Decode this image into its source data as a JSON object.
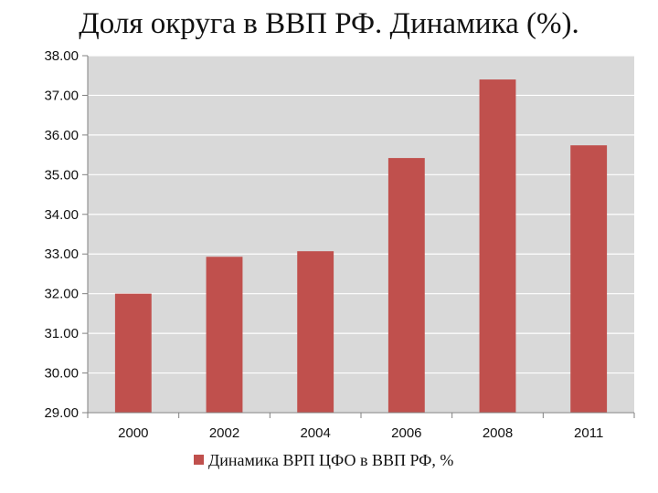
{
  "chart_data": {
    "type": "bar",
    "title": "Доля округа в ВВП РФ. Динамика (%).",
    "xlabel": "",
    "ylabel": "",
    "categories": [
      "2000",
      "2002",
      "2004",
      "2006",
      "2008",
      "2011"
    ],
    "series": [
      {
        "name": "Динамика ВРП ЦФО в ВВП РФ, %",
        "values": [
          32.0,
          32.93,
          33.07,
          35.42,
          37.4,
          35.74
        ],
        "color": "#c0504d"
      }
    ],
    "ylim": [
      29.0,
      38.0
    ],
    "yticks": [
      "29.00",
      "30.00",
      "31.00",
      "32.00",
      "33.00",
      "34.00",
      "35.00",
      "36.00",
      "37.00",
      "38.00"
    ],
    "grid": true,
    "legend": "bottom",
    "colors": {
      "plot_background": "#d9d9d9",
      "gridline": "#ffffff"
    }
  }
}
